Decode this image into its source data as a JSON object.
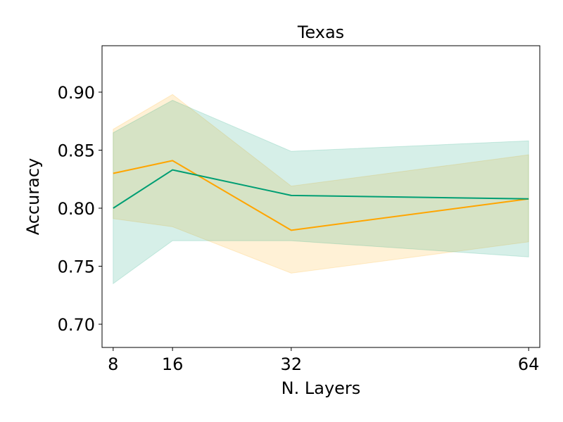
{
  "chart_data": {
    "type": "line",
    "title": "Texas",
    "xlabel": "N. Layers",
    "ylabel": "Accuracy",
    "x": [
      8,
      16,
      32,
      64
    ],
    "xticks": [
      "8",
      "16",
      "32",
      "64"
    ],
    "yticks": [
      "0.70",
      "0.75",
      "0.80",
      "0.85",
      "0.90"
    ],
    "ytick_values": [
      0.7,
      0.75,
      0.8,
      0.85,
      0.9
    ],
    "xlim": [
      6.5,
      65.5
    ],
    "ylim": [
      0.68,
      0.94
    ],
    "grid": false,
    "series": [
      {
        "color": "#FFA500",
        "values": [
          0.83,
          0.841,
          0.781,
          0.808
        ],
        "lower": [
          0.791,
          0.784,
          0.744,
          0.771
        ],
        "upper": [
          0.868,
          0.898,
          0.819,
          0.846
        ]
      },
      {
        "color": "#009E73",
        "values": [
          0.8,
          0.833,
          0.811,
          0.808
        ],
        "lower": [
          0.735,
          0.772,
          0.772,
          0.758
        ],
        "upper": [
          0.865,
          0.893,
          0.849,
          0.858
        ]
      }
    ]
  }
}
